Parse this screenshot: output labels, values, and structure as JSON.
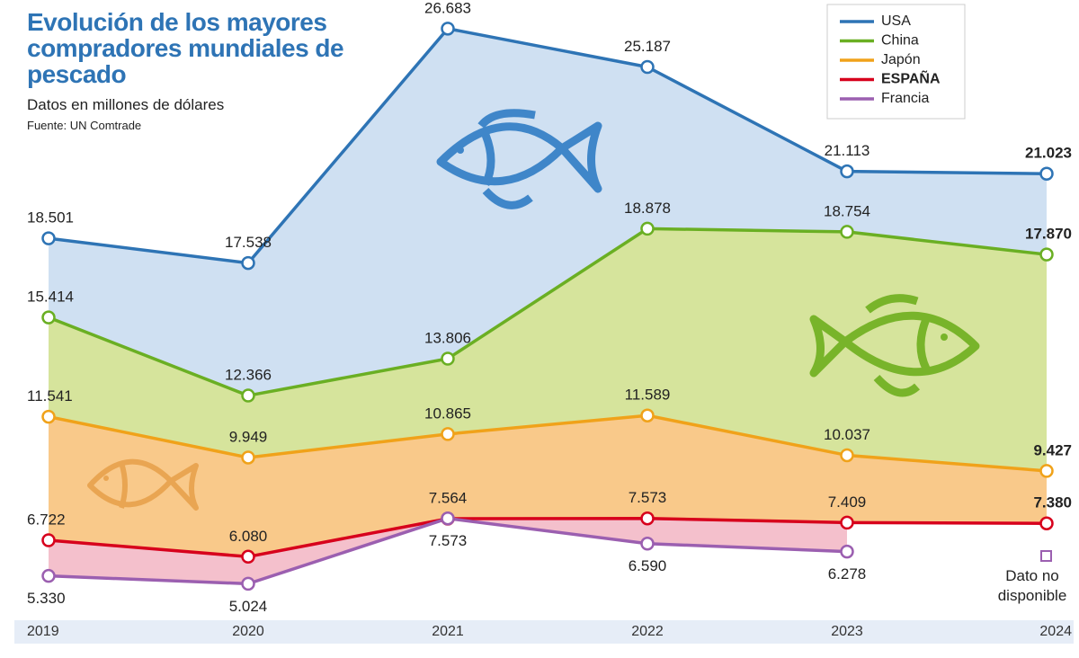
{
  "chart_data": {
    "type": "line",
    "title": "Evolución de los mayores compradores mundiales de pescado",
    "subtitle": "Datos en millones de dólares",
    "source": "Fuente: UN Comtrade",
    "annotation": "Dato no disponible",
    "categories": [
      "2019",
      "2020",
      "2021",
      "2022",
      "2023",
      "2024"
    ],
    "ylim": [
      3600,
      27800
    ],
    "legend": "top-right",
    "series": [
      {
        "name": "USA",
        "color": "#2e74b5",
        "fill": "#cfe0f2",
        "values": [
          18501,
          17538,
          26683,
          25187,
          21113,
          21023
        ],
        "value_labels": [
          "18.501",
          "17.538",
          "26.683",
          "25.187",
          "21.113",
          "21.023"
        ]
      },
      {
        "name": "China",
        "color": "#6aaf23",
        "fill": "#d6e49c",
        "values": [
          15414,
          12366,
          13806,
          18878,
          18754,
          17870
        ],
        "value_labels": [
          "15.414",
          "12.366",
          "13.806",
          "18.878",
          "18.754",
          "17.870"
        ]
      },
      {
        "name": "Japón",
        "color": "#f0a21a",
        "fill": "#f9c98a",
        "values": [
          11541,
          9949,
          10865,
          11589,
          10037,
          9427
        ],
        "value_labels": [
          "11.541",
          "9.949",
          "10.865",
          "11.589",
          "10.037",
          "9.427"
        ]
      },
      {
        "name": "ESPAÑA",
        "color": "#d7001c",
        "fill": "#f4c0cc",
        "bold": true,
        "values": [
          6722,
          6080,
          7564,
          7573,
          7409,
          7380
        ],
        "value_labels": [
          "6.722",
          "6.080",
          "7.564",
          "7.573",
          "7.409",
          "7.380"
        ]
      },
      {
        "name": "Francia",
        "color": "#9b5fb0",
        "values": [
          5330,
          5024,
          7573,
          6590,
          6278,
          null
        ],
        "value_labels": [
          "5.330",
          "5.024",
          "7.573",
          "6.590",
          "6.278",
          null
        ]
      }
    ]
  }
}
